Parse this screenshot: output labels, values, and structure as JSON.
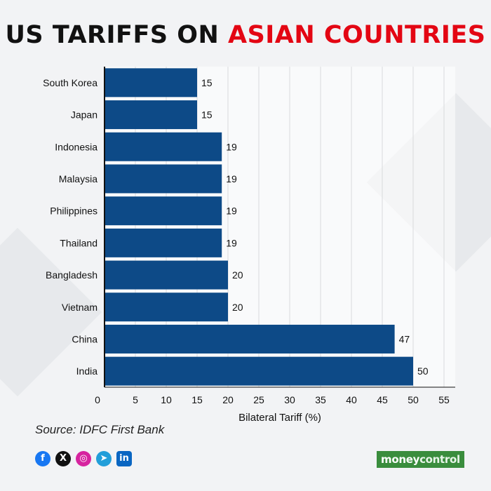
{
  "header": {
    "title_part1": "US TARIFFS ON",
    "title_part2": "ASIAN COUNTRIES",
    "accent_color": "#e30613"
  },
  "chart_data": {
    "type": "bar",
    "orientation": "horizontal",
    "categories": [
      "South Korea",
      "Japan",
      "Indonesia",
      "Malaysia",
      "Philippines",
      "Thailand",
      "Bangladesh",
      "Vietnam",
      "China",
      "India"
    ],
    "values": [
      15,
      15,
      19,
      19,
      19,
      19,
      20,
      20,
      47,
      50
    ],
    "xlabel": "Bilateral Tariff (%)",
    "ylabel": "",
    "xlim": [
      0,
      55
    ],
    "xticks": [
      "0",
      "5",
      "10",
      "15",
      "20",
      "25",
      "30",
      "35",
      "40",
      "45",
      "50",
      "55"
    ],
    "grid": true,
    "bar_color": "#0d4a87",
    "data_labels": true
  },
  "footer": {
    "source": "Source: IDFC First Bank",
    "socials": [
      {
        "icon": "facebook-icon",
        "glyph": "f",
        "cls": "fb"
      },
      {
        "icon": "x-icon",
        "glyph": "X",
        "cls": "x"
      },
      {
        "icon": "instagram-icon",
        "glyph": "◎",
        "cls": "ig"
      },
      {
        "icon": "telegram-icon",
        "glyph": "➤",
        "cls": "tg"
      },
      {
        "icon": "linkedin-icon",
        "glyph": "in",
        "cls": "li"
      }
    ],
    "logo_part1": "money",
    "logo_part2": "control"
  }
}
